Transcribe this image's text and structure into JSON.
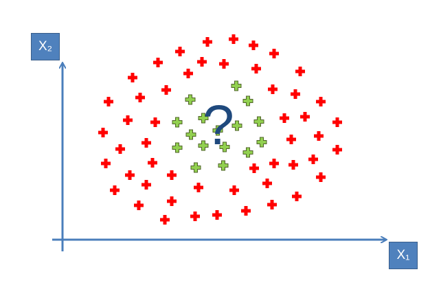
{
  "labels": {
    "y_axis": "X₂",
    "x_axis": "X₁",
    "unknown": "?"
  },
  "colors": {
    "axis": "#4a7ebb",
    "box_fill": "#4f81bd",
    "class_outer": "#ff0000",
    "class_inner": "#92d050",
    "class_inner_stroke": "#4f6228",
    "question": "#1f497d"
  },
  "chart_data": {
    "type": "scatter",
    "title": "",
    "xlabel": "X₁",
    "ylabel": "X₂",
    "grid": false,
    "series": [
      {
        "marker": "plus",
        "color": "#ff0000",
        "points": [
          [
            340,
            57
          ],
          [
            302,
            61
          ],
          [
            369,
            66
          ],
          [
            262,
            75
          ],
          [
            399,
            78
          ],
          [
            230,
            91
          ],
          [
            294,
            90
          ],
          [
            326,
            93
          ],
          [
            373,
            100
          ],
          [
            193,
            113
          ],
          [
            274,
            107
          ],
          [
            437,
            104
          ],
          [
            242,
            131
          ],
          [
            397,
            130
          ],
          [
            158,
            148
          ],
          [
            204,
            142
          ],
          [
            430,
            137
          ],
          [
            467,
            148
          ],
          [
            186,
            175
          ],
          [
            226,
            178
          ],
          [
            414,
            172
          ],
          [
            444,
            170
          ],
          [
            491,
            178
          ],
          [
            150,
            193
          ],
          [
            213,
            208
          ],
          [
            424,
            203
          ],
          [
            464,
            198
          ],
          [
            175,
            217
          ],
          [
            491,
            218
          ],
          [
            154,
            238
          ],
          [
            222,
            237
          ],
          [
            456,
            232
          ],
          [
            399,
            238
          ],
          [
            427,
            240
          ],
          [
            370,
            245
          ],
          [
            189,
            255
          ],
          [
            250,
            255
          ],
          [
            467,
            258
          ],
          [
            213,
            269
          ],
          [
            167,
            277
          ],
          [
            289,
            273
          ],
          [
            341,
            277
          ],
          [
            389,
            267
          ],
          [
            432,
            286
          ],
          [
            202,
            299
          ],
          [
            250,
            293
          ],
          [
            396,
            298
          ],
          [
            358,
            307
          ],
          [
            240,
            320
          ],
          [
            284,
            315
          ],
          [
            316,
            313
          ]
        ]
      },
      {
        "marker": "plus",
        "color": "#92d050",
        "points": [
          [
            344,
            125
          ],
          [
            277,
            145
          ],
          [
            361,
            147
          ],
          [
            296,
            172
          ],
          [
            258,
            178
          ],
          [
            345,
            183
          ],
          [
            377,
            177
          ],
          [
            278,
            196
          ],
          [
            317,
            190
          ],
          [
            258,
            215
          ],
          [
            296,
            212
          ],
          [
            327,
            214
          ],
          [
            381,
            207
          ],
          [
            361,
            222
          ],
          [
            285,
            244
          ],
          [
            325,
            241
          ]
        ]
      }
    ],
    "annotations": [
      {
        "text": "?",
        "x": 318,
        "y": 165
      }
    ]
  }
}
